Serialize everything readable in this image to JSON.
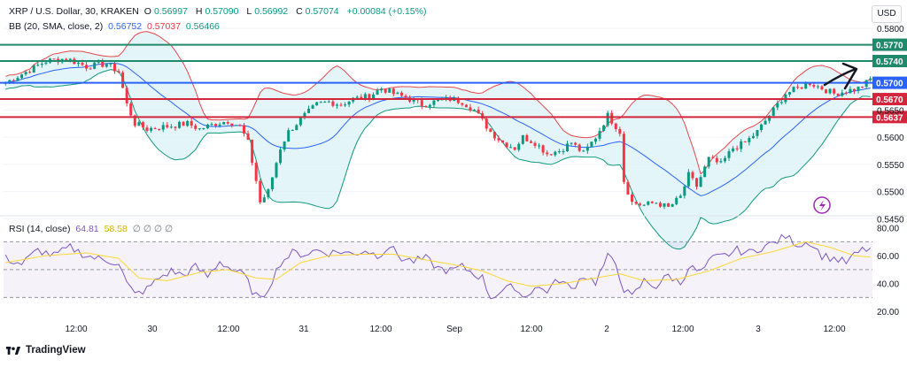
{
  "header": {
    "symbol": "XRP / U.S. Dollar, 30, KRAKEN",
    "open_label": "O",
    "open": "0.56997",
    "high_label": "H",
    "high": "0.57090",
    "low_label": "L",
    "low": "0.56992",
    "close_label": "C",
    "close": "0.57074",
    "change": "+0.00084 (+0.15%)",
    "bb_label": "BB (20, SMA, close, 2)",
    "bb_basis": "0.56752",
    "bb_upper": "0.57037",
    "bb_lower": "0.56466",
    "currency": "USD"
  },
  "rsi_header": {
    "label": "RSI (14, close)",
    "rsi": "64.81",
    "rsi_ma": "58.58",
    "blanks": "∅ ∅ ∅ ∅"
  },
  "colors": {
    "up": "#089981",
    "down": "#f23645",
    "bb": "#e5484d",
    "basis": "#2962ff",
    "rsi": "#7e57c2",
    "rsi_ma": "#fdd835",
    "level_green": "#1e8a6a",
    "level_blue": "#2962ff",
    "level_red": "#d3263d",
    "cloud": "#d9f1f6"
  },
  "chart_data": [
    {
      "type": "candlestick",
      "title": "XRP / U.S. Dollar, 30, KRAKEN",
      "ylim": [
        0.5457,
        0.5823
      ],
      "y_ticks": [
        "0.5800",
        "0.5650",
        "0.5600",
        "0.5550",
        "0.5500",
        "0.5450"
      ],
      "x_ticks": [
        "12:00",
        "30",
        "12:00",
        "31",
        "12:00",
        "Sep",
        "12:00",
        "2",
        "12:00",
        "3",
        "12:00"
      ],
      "horizontal_levels": [
        {
          "value": 0.577,
          "label": "0.5770",
          "color": "green"
        },
        {
          "value": 0.574,
          "label": "0.5740",
          "color": "green"
        },
        {
          "value": 0.57,
          "label": "0.5700",
          "color": "blue"
        },
        {
          "value": 0.567,
          "label": "0.5670",
          "color": "red"
        },
        {
          "value": 0.5637,
          "label": "0.5637",
          "color": "red"
        }
      ],
      "close_path": [
        [
          0,
          0.57
        ],
        [
          5,
          0.572
        ],
        [
          10,
          0.574
        ],
        [
          15,
          0.5745
        ],
        [
          20,
          0.573
        ],
        [
          25,
          0.5735
        ],
        [
          28,
          0.572
        ],
        [
          30,
          0.566
        ],
        [
          32,
          0.5625
        ],
        [
          35,
          0.5615
        ],
        [
          40,
          0.562
        ],
        [
          45,
          0.5625
        ],
        [
          48,
          0.5615
        ],
        [
          52,
          0.5625
        ],
        [
          55,
          0.563
        ],
        [
          58,
          0.562
        ],
        [
          60,
          0.559
        ],
        [
          62,
          0.552
        ],
        [
          63,
          0.548
        ],
        [
          65,
          0.55
        ],
        [
          68,
          0.558
        ],
        [
          70,
          0.561
        ],
        [
          74,
          0.564
        ],
        [
          77,
          0.566
        ],
        [
          80,
          0.5665
        ],
        [
          83,
          0.566
        ],
        [
          86,
          0.567
        ],
        [
          90,
          0.5675
        ],
        [
          93,
          0.569
        ],
        [
          96,
          0.568
        ],
        [
          100,
          0.567
        ],
        [
          103,
          0.566
        ],
        [
          106,
          0.5665
        ],
        [
          110,
          0.567
        ],
        [
          113,
          0.5665
        ],
        [
          116,
          0.565
        ],
        [
          118,
          0.563
        ],
        [
          120,
          0.561
        ],
        [
          123,
          0.559
        ],
        [
          126,
          0.558
        ],
        [
          128,
          0.56
        ],
        [
          131,
          0.559
        ],
        [
          134,
          0.557
        ],
        [
          137,
          0.5575
        ],
        [
          140,
          0.559
        ],
        [
          143,
          0.557
        ],
        [
          146,
          0.56
        ],
        [
          149,
          0.564
        ],
        [
          152,
          0.561
        ],
        [
          153,
          0.552
        ],
        [
          155,
          0.548
        ],
        [
          158,
          0.5475
        ],
        [
          161,
          0.548
        ],
        [
          164,
          0.547
        ],
        [
          167,
          0.549
        ],
        [
          169,
          0.553
        ],
        [
          171,
          0.551
        ],
        [
          174,
          0.556
        ],
        [
          177,
          0.555
        ],
        [
          180,
          0.558
        ],
        [
          183,
          0.559
        ],
        [
          186,
          0.561
        ],
        [
          189,
          0.564
        ],
        [
          191,
          0.566
        ],
        [
          193,
          0.568
        ],
        [
          196,
          0.569
        ],
        [
          199,
          0.57
        ],
        [
          202,
          0.569
        ],
        [
          205,
          0.568
        ],
        [
          208,
          0.5685
        ],
        [
          211,
          0.569
        ],
        [
          213,
          0.57
        ],
        [
          214,
          0.5707
        ]
      ],
      "price_range": [
        0.5457,
        0.577
      ]
    },
    {
      "type": "line",
      "title": "RSI (14, close)",
      "ylim": [
        15,
        88
      ],
      "y_ticks": [
        "80.00",
        "60.00",
        "40.00",
        "20.00"
      ],
      "band": [
        30,
        70
      ],
      "midline": 50,
      "series": [
        {
          "name": "RSI",
          "values": [
            [
              0,
              58
            ],
            [
              4,
              54
            ],
            [
              8,
              64
            ],
            [
              12,
              60
            ],
            [
              16,
              66
            ],
            [
              20,
              60
            ],
            [
              24,
              57
            ],
            [
              28,
              55
            ],
            [
              30,
              40
            ],
            [
              32,
              32
            ],
            [
              35,
              36
            ],
            [
              38,
              44
            ],
            [
              41,
              49
            ],
            [
              44,
              46
            ],
            [
              47,
              52
            ],
            [
              50,
              45
            ],
            [
              53,
              56
            ],
            [
              56,
              50
            ],
            [
              59,
              46
            ],
            [
              61,
              35
            ],
            [
              63,
              28
            ],
            [
              65,
              37
            ],
            [
              68,
              55
            ],
            [
              71,
              62
            ],
            [
              74,
              61
            ],
            [
              77,
              64
            ],
            [
              80,
              62
            ],
            [
              83,
              63
            ],
            [
              86,
              61
            ],
            [
              89,
              64
            ],
            [
              92,
              60
            ],
            [
              95,
              67
            ],
            [
              98,
              58
            ],
            [
              101,
              56
            ],
            [
              104,
              58
            ],
            [
              107,
              51
            ],
            [
              110,
              49
            ],
            [
              113,
              52
            ],
            [
              116,
              47
            ],
            [
              118,
              44
            ],
            [
              120,
              30
            ],
            [
              123,
              35
            ],
            [
              126,
              38
            ],
            [
              128,
              30
            ],
            [
              131,
              37
            ],
            [
              134,
              35
            ],
            [
              137,
              43
            ],
            [
              140,
              36
            ],
            [
              143,
              46
            ],
            [
              146,
              41
            ],
            [
              149,
              59
            ],
            [
              151,
              54
            ],
            [
              153,
              36
            ],
            [
              155,
              30
            ],
            [
              158,
              42
            ],
            [
              161,
              38
            ],
            [
              164,
              46
            ],
            [
              167,
              40
            ],
            [
              169,
              52
            ],
            [
              172,
              48
            ],
            [
              175,
              58
            ],
            [
              178,
              60
            ],
            [
              181,
              64
            ],
            [
              184,
              62
            ],
            [
              187,
              66
            ],
            [
              190,
              69
            ],
            [
              193,
              74
            ],
            [
              196,
              68
            ],
            [
              199,
              70
            ],
            [
              202,
              60
            ],
            [
              205,
              58
            ],
            [
              208,
              55
            ],
            [
              210,
              60
            ],
            [
              212,
              64
            ],
            [
              214,
              65
            ]
          ]
        },
        {
          "name": "RSI MA",
          "values": [
            [
              0,
              55
            ],
            [
              10,
              60
            ],
            [
              20,
              62
            ],
            [
              28,
              58
            ],
            [
              33,
              44
            ],
            [
              40,
              42
            ],
            [
              48,
              48
            ],
            [
              55,
              50
            ],
            [
              62,
              44
            ],
            [
              67,
              43
            ],
            [
              73,
              55
            ],
            [
              80,
              60
            ],
            [
              88,
              61
            ],
            [
              96,
              61
            ],
            [
              104,
              57
            ],
            [
              112,
              53
            ],
            [
              118,
              49
            ],
            [
              124,
              42
            ],
            [
              130,
              38
            ],
            [
              138,
              40
            ],
            [
              146,
              44
            ],
            [
              152,
              47
            ],
            [
              158,
              42
            ],
            [
              166,
              43
            ],
            [
              174,
              49
            ],
            [
              182,
              58
            ],
            [
              190,
              63
            ],
            [
              198,
              70
            ],
            [
              204,
              66
            ],
            [
              210,
              60
            ],
            [
              214,
              59
            ]
          ]
        }
      ]
    }
  ]
}
